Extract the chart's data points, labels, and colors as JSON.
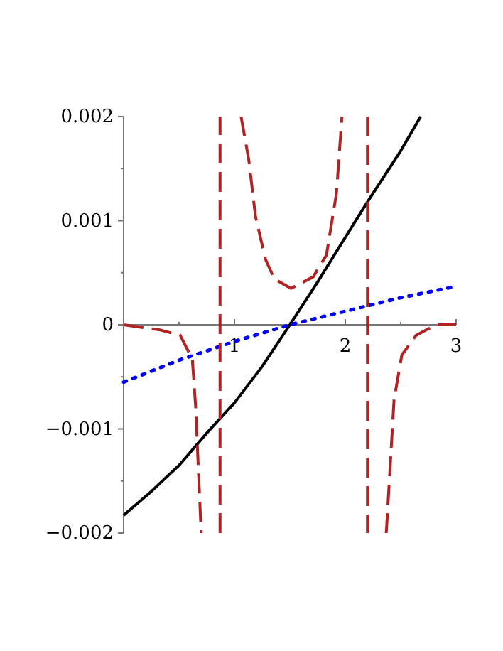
{
  "chart_data": {
    "type": "line",
    "xlim": [
      0,
      3
    ],
    "ylim": [
      -0.002,
      0.002
    ],
    "xticks": [
      {
        "value": 0.5,
        "label": null
      },
      1,
      {
        "value": 1.5,
        "label": null
      },
      2,
      {
        "value": 2.5,
        "label": null
      },
      3
    ],
    "yticks": [
      {
        "value": -0.002,
        "label": "−0.002"
      },
      {
        "value": -0.0015,
        "label": null
      },
      {
        "value": -0.001,
        "label": "−0.001"
      },
      {
        "value": -0.0005,
        "label": null
      },
      0,
      {
        "value": 0.0005,
        "label": null
      },
      0.001,
      {
        "value": 0.0015,
        "label": null
      },
      0.002
    ],
    "grid": false,
    "marker": "none",
    "series": [
      {
        "color": "#000000",
        "line_style": "solid",
        "x": [
          0,
          0.25,
          0.5,
          0.75,
          1,
          1.25,
          1.5,
          1.75,
          2,
          2.2,
          2.5,
          2.68
        ],
        "values": [
          -0.00183,
          -0.0016,
          -0.00135,
          -0.00104,
          -0.00075,
          -0.0004,
          0,
          0.00041,
          0.00084,
          0.00118,
          0.00167,
          0.002
        ]
      },
      {
        "color": "#0000ff",
        "line_style": "dotted",
        "x": [
          0,
          0.5,
          1,
          1.5,
          2,
          2.5,
          3
        ],
        "values": [
          -0.00055,
          -0.00034,
          -0.00016,
          0,
          0.00013,
          0.00026,
          0.00037
        ]
      },
      {
        "color": "#b22222",
        "line_style": "dashed",
        "x": [
          0,
          0.33,
          0.51,
          0.62,
          0.65,
          0.7,
          0.8,
          0.87,
          0.87,
          0.9,
          1.06,
          1.13,
          1.19,
          1.28,
          1.36,
          1.51,
          1.71,
          1.83,
          1.92,
          1.97,
          2.1,
          2.2,
          2.2,
          2.3,
          2.37,
          2.44,
          2.51,
          2.64,
          2.82,
          3
        ],
        "values": [
          0,
          -5e-05,
          -0.0001,
          -0.00033,
          -0.00079,
          -0.002,
          null,
          -0.002,
          0.002,
          null,
          0.002,
          0.00158,
          0.00104,
          0.00063,
          0.00044,
          0.00035,
          0.00046,
          0.00067,
          0.00126,
          0.002,
          null,
          0.002,
          -0.002,
          null,
          -0.002,
          -0.00072,
          -0.00029,
          -0.0001,
          0,
          0
        ]
      }
    ]
  }
}
